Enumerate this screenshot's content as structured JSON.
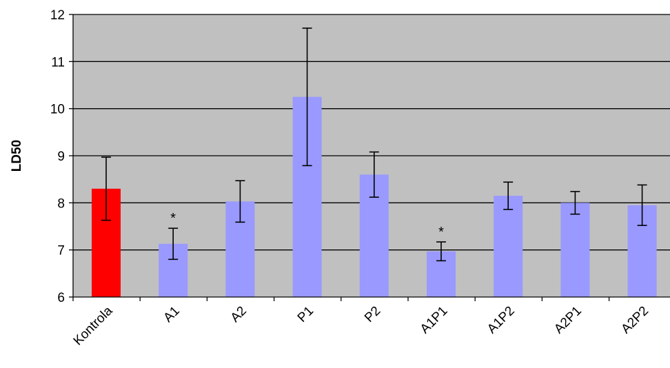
{
  "chart_data": {
    "type": "bar",
    "title": "",
    "xlabel": "",
    "ylabel": "LD50",
    "ylim": [
      6,
      12
    ],
    "yticks": [
      6,
      7,
      8,
      9,
      10,
      11,
      12
    ],
    "grid": true,
    "plot_background": "#C0C0C0",
    "categories": [
      "Kontrola",
      "A1",
      "A2",
      "P1",
      "P2",
      "A1P1",
      "A1P2",
      "A2P1",
      "A2P2"
    ],
    "values": [
      8.3,
      7.13,
      8.03,
      10.25,
      8.6,
      6.97,
      8.15,
      8.0,
      7.95
    ],
    "error": [
      0.67,
      0.33,
      0.44,
      1.46,
      0.48,
      0.2,
      0.29,
      0.24,
      0.43
    ],
    "bar_colors": [
      "#FF0000",
      "#9999FF",
      "#9999FF",
      "#9999FF",
      "#9999FF",
      "#9999FF",
      "#9999FF",
      "#9999FF",
      "#9999FF"
    ],
    "significance": [
      "",
      "*",
      "",
      "",
      "",
      "*",
      "",
      "",
      ""
    ]
  }
}
